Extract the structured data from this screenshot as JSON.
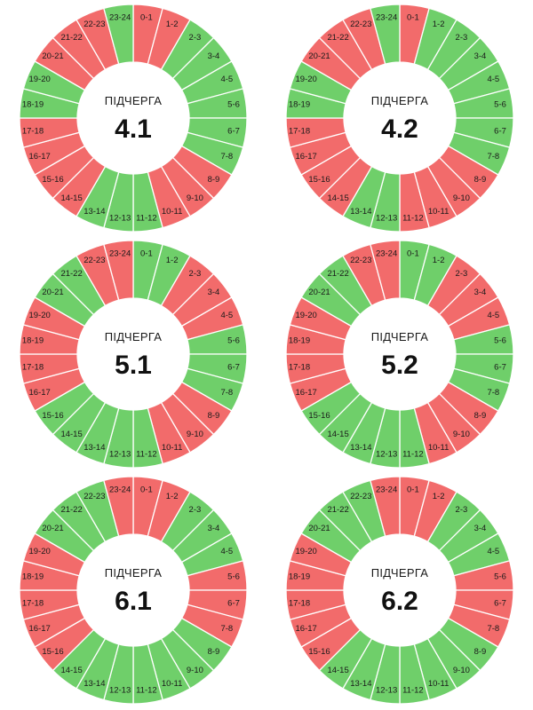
{
  "colors": {
    "on": "#6fcf6a",
    "off": "#f26b6b",
    "separator": "#ffffff"
  },
  "hour_labels": [
    "0-1",
    "1-2",
    "2-3",
    "3-4",
    "4-5",
    "5-6",
    "6-7",
    "7-8",
    "8-9",
    "9-10",
    "10-11",
    "11-12",
    "12-13",
    "13-14",
    "14-15",
    "15-16",
    "16-17",
    "17-18",
    "18-19",
    "19-20",
    "20-21",
    "21-22",
    "22-23",
    "23-24"
  ],
  "chart_data": [
    {
      "type": "pie",
      "caption": "ПІДЧЕРГА",
      "title": "4.1",
      "status": [
        "off",
        "off",
        "on",
        "on",
        "on",
        "on",
        "on",
        "on",
        "off",
        "off",
        "off",
        "on",
        "on",
        "on",
        "off",
        "off",
        "off",
        "off",
        "on",
        "on",
        "off",
        "off",
        "off",
        "on"
      ]
    },
    {
      "type": "pie",
      "caption": "ПІДЧЕРГА",
      "title": "4.2",
      "status": [
        "off",
        "on",
        "on",
        "on",
        "on",
        "on",
        "on",
        "on",
        "off",
        "off",
        "off",
        "off",
        "on",
        "on",
        "off",
        "off",
        "off",
        "off",
        "on",
        "on",
        "off",
        "off",
        "off",
        "on"
      ]
    },
    {
      "type": "pie",
      "caption": "ПІДЧЕРГА",
      "title": "5.1",
      "status": [
        "on",
        "on",
        "off",
        "off",
        "off",
        "on",
        "on",
        "on",
        "off",
        "off",
        "off",
        "on",
        "on",
        "on",
        "on",
        "on",
        "off",
        "off",
        "off",
        "off",
        "on",
        "on",
        "off",
        "off"
      ]
    },
    {
      "type": "pie",
      "caption": "ПІДЧЕРГА",
      "title": "5.2",
      "status": [
        "on",
        "on",
        "off",
        "off",
        "off",
        "on",
        "on",
        "on",
        "off",
        "off",
        "off",
        "on",
        "on",
        "on",
        "on",
        "on",
        "off",
        "off",
        "off",
        "off",
        "on",
        "on",
        "off",
        "off"
      ]
    },
    {
      "type": "pie",
      "caption": "ПІДЧЕРГА",
      "title": "6.1",
      "status": [
        "off",
        "off",
        "on",
        "on",
        "on",
        "off",
        "off",
        "off",
        "on",
        "on",
        "on",
        "on",
        "on",
        "on",
        "on",
        "off",
        "off",
        "off",
        "off",
        "off",
        "on",
        "on",
        "on",
        "off"
      ]
    },
    {
      "type": "pie",
      "caption": "ПІДЧЕРГА",
      "title": "6.2",
      "status": [
        "off",
        "off",
        "on",
        "on",
        "on",
        "off",
        "off",
        "off",
        "on",
        "on",
        "on",
        "on",
        "on",
        "on",
        "on",
        "off",
        "off",
        "off",
        "off",
        "off",
        "on",
        "on",
        "on",
        "off"
      ]
    }
  ]
}
